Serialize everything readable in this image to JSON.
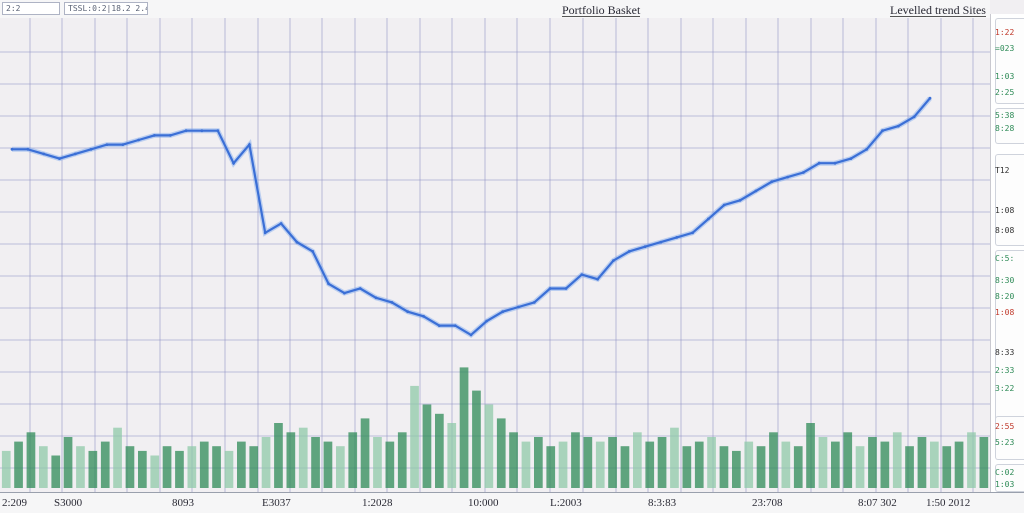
{
  "toolbar": {
    "field1": "2:2",
    "field2": "TSSL:0:2|18.2 2.4"
  },
  "chart_data": {
    "type": "line",
    "title": "Portfolio Basket",
    "legend_label": "Levelled trend Sites",
    "colors": {
      "line": "#3b6fd6",
      "line_light": "#7aa6ee",
      "volume": "#2e8b57",
      "volume_light": "#8fc9a8",
      "grid": "#8d8fc4"
    },
    "grid": true,
    "ylim": [
      0,
      100
    ],
    "x_tick_labels": [
      "2:209",
      "S3000",
      "8093",
      "E3037",
      "1:2028",
      "10:000",
      "L:2003",
      "8:3:83",
      "23:708",
      "8:07 302",
      "1:50 2012"
    ],
    "series": [
      {
        "values": [
          73,
          73,
          72,
          71,
          72,
          73,
          74,
          74,
          75,
          76,
          76,
          77,
          77,
          77,
          70,
          74,
          55,
          57,
          53,
          51,
          44,
          42,
          43,
          41,
          40,
          38,
          37,
          35,
          35,
          33,
          36,
          38,
          39,
          40,
          43,
          43,
          46,
          45,
          49,
          51,
          52,
          53,
          54,
          55,
          58,
          61,
          62,
          64,
          66,
          67,
          68,
          70,
          70,
          71,
          73,
          77,
          78,
          80,
          84
        ]
      }
    ],
    "volume": [
      8,
      10,
      12,
      9,
      7,
      11,
      9,
      8,
      10,
      13,
      9,
      8,
      7,
      9,
      8,
      9,
      10,
      9,
      8,
      10,
      9,
      11,
      14,
      12,
      13,
      11,
      10,
      9,
      12,
      15,
      11,
      10,
      12,
      22,
      18,
      16,
      14,
      26,
      21,
      18,
      15,
      12,
      10,
      11,
      9,
      10,
      12,
      11,
      10,
      11,
      9,
      12,
      10,
      11,
      13,
      9,
      10,
      11,
      9,
      8,
      10,
      9,
      12,
      10,
      9,
      14,
      11,
      10,
      12,
      9,
      11,
      10,
      12,
      9,
      11,
      10,
      9,
      10,
      12,
      11
    ]
  },
  "side_panel": {
    "card1": [
      {
        "text": "1:22",
        "color": "#c0392b"
      },
      {
        "text": "=023",
        "color": "#2e8b57"
      },
      {
        "text": "1:03",
        "color": "#2e8b57"
      },
      {
        "text": "2:25",
        "color": "#2e8b57"
      }
    ],
    "card2": [
      {
        "text": "5:38",
        "color": "#2e8b57"
      },
      {
        "text": "8:28",
        "color": "#2e8b57"
      }
    ],
    "card3": [
      {
        "text": "T12",
        "color": "#333333"
      },
      {
        "text": "1:08",
        "color": "#333333"
      },
      {
        "text": "8:08",
        "color": "#333333"
      }
    ],
    "card4": [
      {
        "text": "C:5:",
        "color": "#2e8b57"
      },
      {
        "text": "8:30",
        "color": "#2e8b57"
      },
      {
        "text": "8:20",
        "color": "#2e8b57"
      },
      {
        "text": "1:08",
        "color": "#c0392b"
      },
      {
        "text": "8:33",
        "color": "#333333"
      },
      {
        "text": "2:33",
        "color": "#2e8b57"
      },
      {
        "text": "3:22",
        "color": "#2e8b57"
      }
    ],
    "card5": [
      {
        "text": "2:55",
        "color": "#c0392b"
      },
      {
        "text": "5:23",
        "color": "#2e8b57"
      }
    ],
    "card6": [
      {
        "text": "C:02",
        "color": "#2e8b57"
      },
      {
        "text": "1:03",
        "color": "#2e8b57"
      }
    ]
  }
}
